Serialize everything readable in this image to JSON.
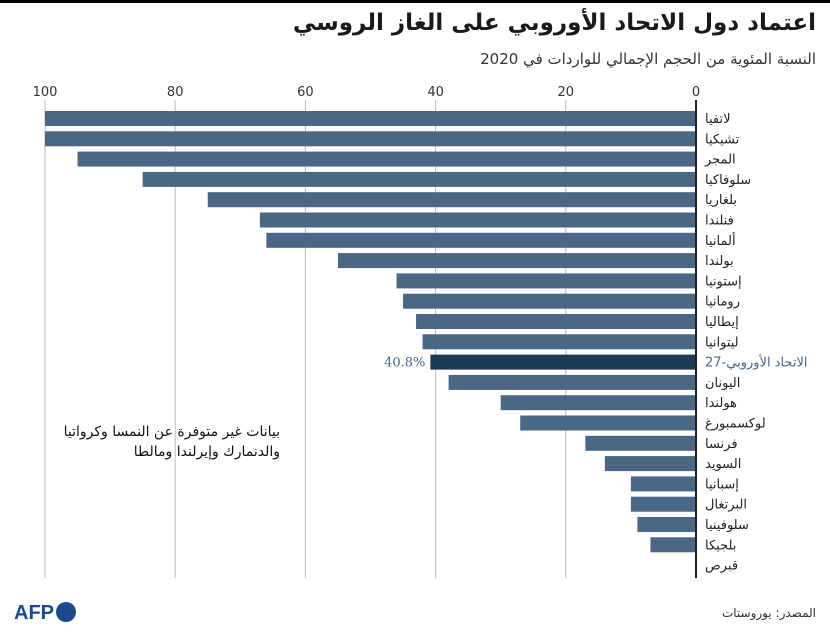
{
  "title": "اعتماد دول الاتحاد الأوروبي على الغاز الروسي",
  "subtitle": "النسبة المئوية من الحجم الإجمالي للواردات في 2020",
  "note": "بيانات غير متوفرة عن النمسا وكرواتيا والدنمارك وإيرلندا ومالطا",
  "source": "المصدر: يوروستات",
  "logo_text": "AFP",
  "colors": {
    "bar": "#4a6786",
    "highlight": "#1c3a56",
    "highlight_label": "#4a6786",
    "axis": "#222222",
    "grid": "#bbbbbb"
  },
  "chart_data": {
    "type": "bar",
    "orientation": "horizontal",
    "xlim": [
      0,
      100
    ],
    "xticks": [
      "100",
      "80",
      "60",
      "40",
      "20",
      "0"
    ],
    "categories": [
      "لاتفيا",
      "تشيكيا",
      "المجر",
      "سلوفاكيا",
      "بلغاريا",
      "فنلندا",
      "ألمانيا",
      "بولندا",
      "إستونيا",
      "رومانيا",
      "إيطاليا",
      "ليتوانيا",
      "الاتحاد الأوروبي-27",
      "اليونان",
      "هولندا",
      "لوكسمبورغ",
      "فرنسا",
      "السويد",
      "إسبانيا",
      "البرتغال",
      "سلوفينيا",
      "بلجيكا",
      "قبرص"
    ],
    "values": [
      100,
      100,
      95,
      85,
      75,
      67,
      66,
      55,
      46,
      45,
      43,
      42,
      40.8,
      38,
      30,
      27,
      17,
      14,
      10,
      10,
      9,
      7,
      0
    ],
    "highlight_index": 12,
    "highlight_label": "40.8%"
  }
}
